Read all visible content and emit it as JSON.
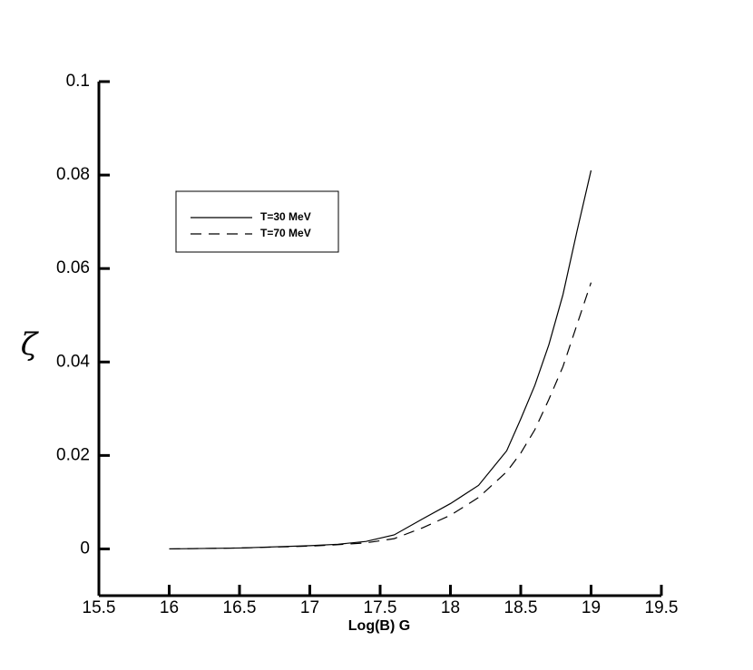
{
  "chart_data": {
    "type": "line",
    "xlabel": "Log(B) G",
    "ylabel": "ζ",
    "x": [
      16,
      16.5,
      17,
      17.2,
      17.4,
      17.6,
      17.8,
      18,
      18.2,
      18.4,
      18.5,
      18.6,
      18.7,
      18.8,
      18.9,
      19
    ],
    "series": [
      {
        "name": "T=30 MeV",
        "color": "#000000",
        "dash": "solid",
        "values": [
          0,
          0.0002,
          0.0007,
          0.001,
          0.0016,
          0.003,
          0.0064,
          0.0097,
          0.0136,
          0.021,
          0.0278,
          0.035,
          0.0437,
          0.0544,
          0.068,
          0.081
        ]
      },
      {
        "name": "T=70 MeV",
        "color": "#000000",
        "dash": "dashed",
        "values": [
          0,
          0.0002,
          0.0006,
          0.0009,
          0.0013,
          0.0022,
          0.0045,
          0.0072,
          0.011,
          0.0165,
          0.0205,
          0.0255,
          0.032,
          0.039,
          0.048,
          0.057
        ]
      }
    ],
    "xlim": [
      15.5,
      19.5
    ],
    "xticks": [
      15.5,
      16,
      16.5,
      17,
      17.5,
      18,
      18.5,
      19,
      19.5
    ],
    "ylim": [
      -0.01,
      0.1
    ],
    "yticks": [
      0,
      0.02,
      0.04,
      0.06,
      0.08,
      0.1
    ],
    "legend": "upper-left"
  }
}
